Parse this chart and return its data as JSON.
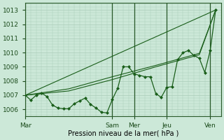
{
  "bg_color": "#cce8d8",
  "grid_color": "#aaccb8",
  "line_color": "#1a5e1a",
  "marker_color": "#1a5e1a",
  "xlabel": "Pression niveau de la mer( hPa )",
  "ylim": [
    1005.5,
    1013.5
  ],
  "yticks": [
    1006,
    1007,
    1008,
    1009,
    1010,
    1011,
    1012,
    1013
  ],
  "xlim": [
    0,
    108
  ],
  "xtick_labels": [
    "Mar",
    "Sam",
    "Mer",
    "Jeu",
    "Ven"
  ],
  "xtick_positions": [
    0,
    48,
    60,
    78,
    102
  ],
  "vline_positions": [
    0,
    48,
    60,
    78,
    102
  ],
  "series1_x": [
    0,
    3,
    6,
    9,
    12,
    15,
    18,
    21,
    24,
    27,
    30,
    33,
    36,
    39,
    42,
    45,
    48,
    51,
    54,
    57,
    60,
    63,
    66,
    69,
    72,
    75,
    78,
    81,
    84,
    87,
    90,
    93,
    96,
    99,
    102,
    105
  ],
  "series1_y": [
    1007.0,
    1006.65,
    1007.0,
    1007.15,
    1006.9,
    1006.3,
    1006.1,
    1006.05,
    1006.05,
    1006.4,
    1006.6,
    1006.8,
    1006.35,
    1006.1,
    1005.8,
    1005.75,
    1006.7,
    1007.5,
    1009.0,
    1009.0,
    1008.5,
    1008.4,
    1008.3,
    1008.3,
    1007.1,
    1006.85,
    1007.55,
    1007.6,
    1009.5,
    1010.0,
    1010.15,
    1009.8,
    1009.6,
    1008.6,
    1010.15,
    1013.0
  ],
  "series2_x": [
    0,
    105
  ],
  "series2_y": [
    1007.0,
    1013.0
  ],
  "series3_x": [
    0,
    24,
    48,
    72,
    96,
    105
  ],
  "series3_y": [
    1007.0,
    1007.3,
    1008.1,
    1009.0,
    1009.85,
    1013.0
  ],
  "series4_x": [
    0,
    24,
    48,
    72,
    96,
    105
  ],
  "series4_y": [
    1007.0,
    1007.45,
    1008.3,
    1009.1,
    1009.95,
    1013.0
  ]
}
